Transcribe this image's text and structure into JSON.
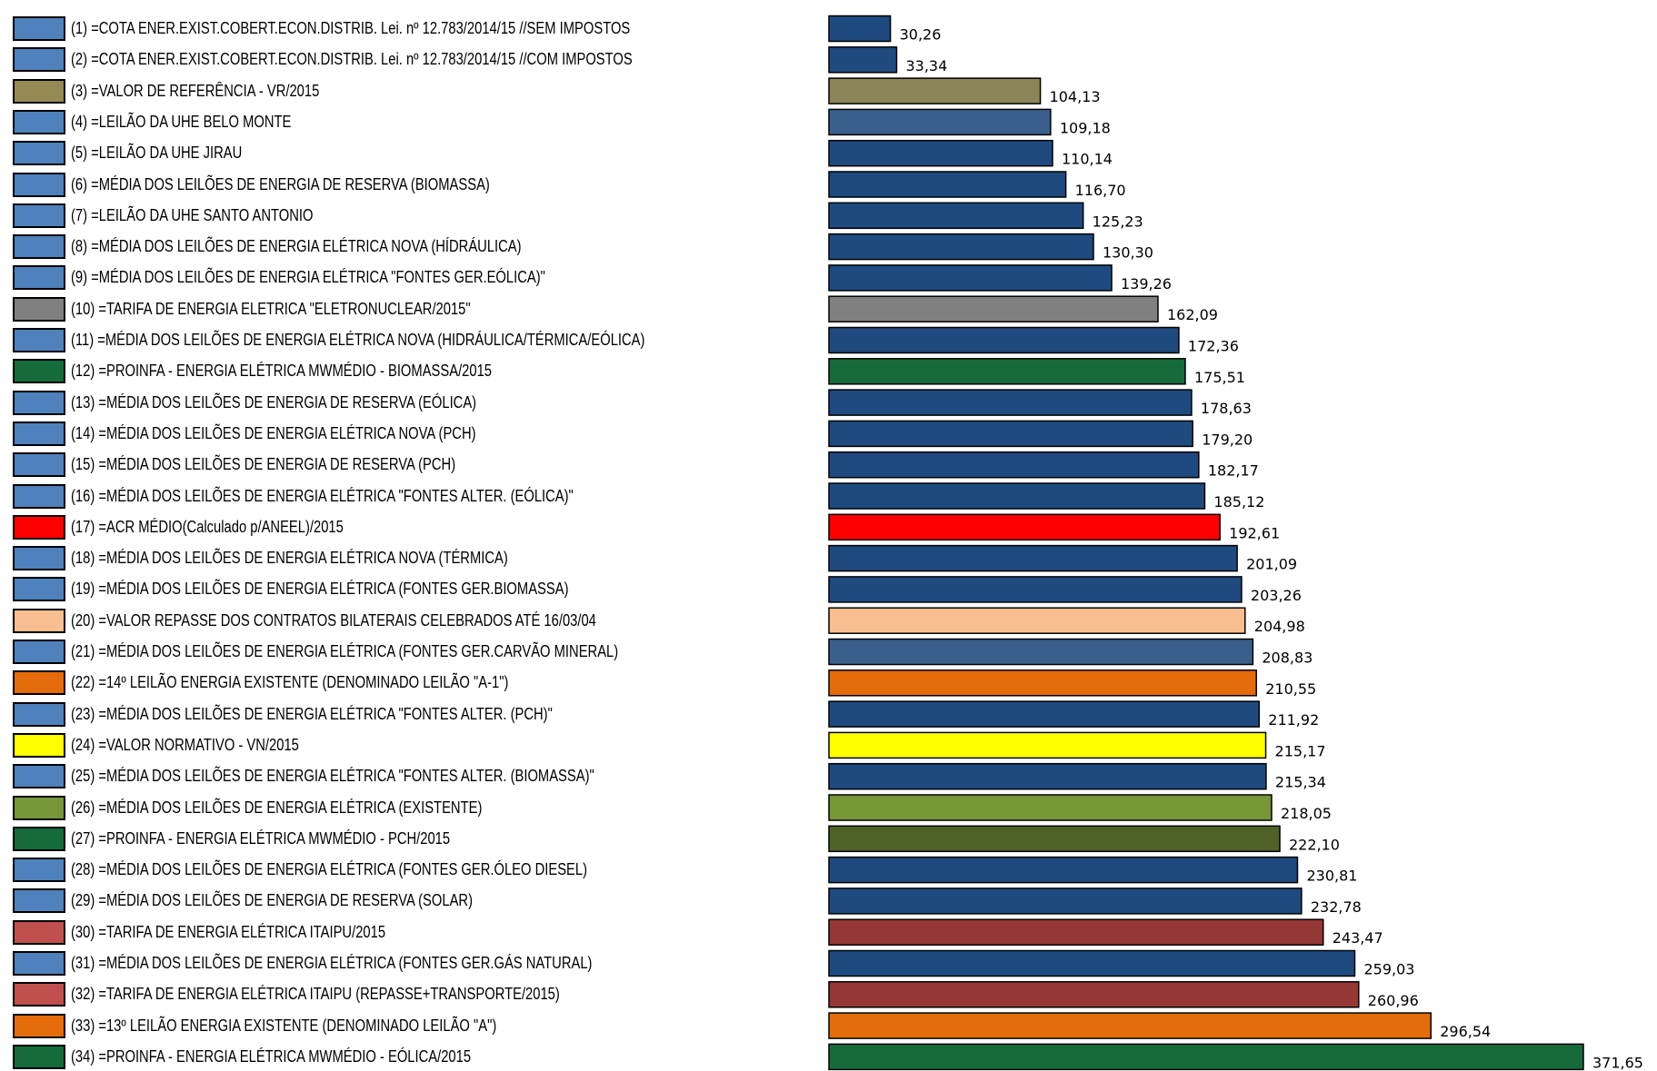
{
  "chart_data": {
    "type": "bar",
    "orientation": "horizontal",
    "categories": [
      "(1) =COTA ENER.EXIST.COBERT.ECON.DISTRIB. Lei. nº 12.783/2014/15 //SEM IMPOSTOS",
      "(2) =COTA ENER.EXIST.COBERT.ECON.DISTRIB. Lei. nº 12.783/2014/15 //COM IMPOSTOS",
      "(3) =VALOR DE REFERÊNCIA - VR/2015",
      "(4) =LEILÃO DA UHE BELO MONTE",
      "(5) =LEILÃO DA UHE JIRAU",
      "(6) =MÉDIA DOS LEILÕES DE ENERGIA DE RESERVA (BIOMASSA)",
      "(7) =LEILÃO DA UHE SANTO ANTONIO",
      "(8) =MÉDIA DOS LEILÕES DE ENERGIA ELÉTRICA NOVA (HÍDRÁULICA)",
      "(9) =MÉDIA DOS LEILÕES DE ENERGIA ELÉTRICA \"FONTES GER.EÓLICA)\"",
      "(10) =TARIFA DE ENERGIA ELETRICA \"ELETRONUCLEAR/2015\"",
      "(11) =MÉDIA DOS LEILÕES DE ENERGIA ELÉTRICA NOVA (HIDRÁULICA/TÉRMICA/EÓLICA)",
      "(12) =PROINFA - ENERGIA ELÉTRICA MWMÉDIO - BIOMASSA/2015",
      "(13) =MÉDIA DOS LEILÕES DE ENERGIA DE RESERVA (EÓLICA)",
      "(14) =MÉDIA DOS LEILÕES DE ENERGIA ELÉTRICA NOVA (PCH)",
      "(15) =MÉDIA DOS LEILÕES DE ENERGIA DE RESERVA (PCH)",
      "(16) =MÉDIA DOS LEILÕES DE ENERGIA ELÉTRICA \"FONTES ALTER. (EÓLICA)\"",
      "(17) =ACR MÉDIO(Calculado p/ANEEL)/2015",
      "(18) =MÉDIA DOS LEILÕES DE ENERGIA ELÉTRICA NOVA (TÉRMICA)",
      "(19) =MÉDIA DOS LEILÕES DE ENERGIA ELÉTRICA (FONTES GER.BIOMASSA)",
      "(20) =VALOR REPASSE DOS CONTRATOS BILATERAIS CELEBRADOS ATÉ 16/03/04",
      "(21) =MÉDIA DOS LEILÕES DE ENERGIA ELÉTRICA (FONTES GER.CARVÃO MINERAL)",
      "(22) =14º LEILÃO ENERGIA EXISTENTE (DENOMINADO LEILÃO \"A-1\")",
      "(23) =MÉDIA DOS LEILÕES DE ENERGIA ELÉTRICA \"FONTES ALTER. (PCH)\"",
      "(24) =VALOR NORMATIVO - VN/2015",
      "(25) =MÉDIA DOS LEILÕES DE ENERGIA ELÉTRICA \"FONTES ALTER. (BIOMASSA)\"",
      "(26) =MÉDIA DOS LEILÕES DE ENERGIA ELÉTRICA (EXISTENTE)",
      "(27) =PROINFA - ENERGIA ELÉTRICA MWMÉDIO - PCH/2015",
      "(28) =MÉDIA DOS LEILÕES DE ENERGIA ELÉTRICA (FONTES GER.ÓLEO DIESEL)",
      "(29) =MÉDIA DOS LEILÕES DE ENERGIA DE RESERVA (SOLAR)",
      "(30) =TARIFA DE ENERGIA ELÉTRICA ITAIPU/2015",
      "(31) =MÉDIA DOS LEILÕES DE ENERGIA ELÉTRICA (FONTES GER.GÁS NATURAL)",
      "(32) =TARIFA DE ENERGIA ELÉTRICA ITAIPU (REPASSE+TRANSPORTE/2015)",
      "(33) =13º LEILÃO ENERGIA EXISTENTE (DENOMINADO LEILÃO \"A\")",
      "(34) =PROINFA - ENERGIA ELÉTRICA MWMÉDIO - EÓLICA/2015"
    ],
    "values": [
      30.26,
      33.34,
      104.13,
      109.18,
      110.14,
      116.7,
      125.23,
      130.3,
      139.26,
      162.09,
      172.36,
      175.51,
      178.63,
      179.2,
      182.17,
      185.12,
      192.61,
      201.09,
      203.26,
      204.98,
      208.83,
      210.55,
      211.92,
      215.17,
      215.34,
      218.05,
      222.1,
      230.81,
      232.78,
      243.47,
      259.03,
      260.96,
      296.54,
      371.65
    ],
    "value_labels": [
      "30,26",
      "33,34",
      "104,13",
      "109,18",
      "110,14",
      "116,70",
      "125,23",
      "130,30",
      "139,26",
      "162,09",
      "172,36",
      "175,51",
      "178,63",
      "179,20",
      "182,17",
      "185,12",
      "192,61",
      "201,09",
      "203,26",
      "204,98",
      "208,83",
      "210,55",
      "211,92",
      "215,17",
      "215,34",
      "218,05",
      "222,10",
      "230,81",
      "232,78",
      "243,47",
      "259,03",
      "260,96",
      "296,54",
      "371,65"
    ],
    "bar_colors": [
      "#1f4a7f",
      "#1f4a7f",
      "#8b8456",
      "#3b5f8c",
      "#1f4a7f",
      "#1f4a7f",
      "#1f4a7f",
      "#1f4a7f",
      "#1f4a7f",
      "#808080",
      "#1f4a7f",
      "#156b3a",
      "#1f4a7f",
      "#1f4a7f",
      "#1f4a7f",
      "#1f4a7f",
      "#ff0000",
      "#1f4a7f",
      "#1f4a7f",
      "#f9be8f",
      "#3b5f8c",
      "#e46c0a",
      "#1f4a7f",
      "#ffff00",
      "#1f4a7f",
      "#779637",
      "#4f6228",
      "#1f4a7f",
      "#1f4a7f",
      "#953735",
      "#1f4a7f",
      "#953735",
      "#e46c0a",
      "#156b3a"
    ],
    "legend_colors": [
      "#4f81bd",
      "#4f81bd",
      "#948a54",
      "#4f81bd",
      "#4f81bd",
      "#4f81bd",
      "#4f81bd",
      "#4f81bd",
      "#4f81bd",
      "#808080",
      "#4f81bd",
      "#156b3a",
      "#4f81bd",
      "#4f81bd",
      "#4f81bd",
      "#4f81bd",
      "#ff0000",
      "#4f81bd",
      "#4f81bd",
      "#f9be8f",
      "#4f81bd",
      "#e46c0a",
      "#4f81bd",
      "#ffff00",
      "#4f81bd",
      "#779637",
      "#156b3a",
      "#4f81bd",
      "#4f81bd",
      "#c0504d",
      "#4f81bd",
      "#c0504d",
      "#e46c0a",
      "#156b3a"
    ],
    "xlim": [
      0,
      371.65
    ],
    "grid": false,
    "legend": "left"
  }
}
